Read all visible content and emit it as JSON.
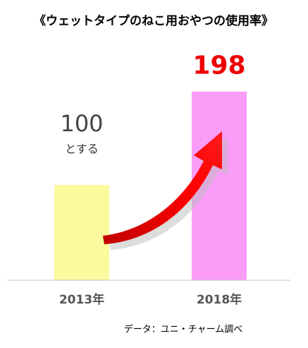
{
  "chart_data": {
    "type": "bar",
    "title": "《ウェットタイプのねこ用おやつの使用率》",
    "categories": [
      "2013年",
      "2018年"
    ],
    "values": [
      100,
      198
    ],
    "colors": [
      "#fbfa9e",
      "#fa9cf8"
    ],
    "annotation": "とする",
    "source": "データ：ユニ・チャーム調べ",
    "ylim": [
      0,
      200
    ]
  }
}
